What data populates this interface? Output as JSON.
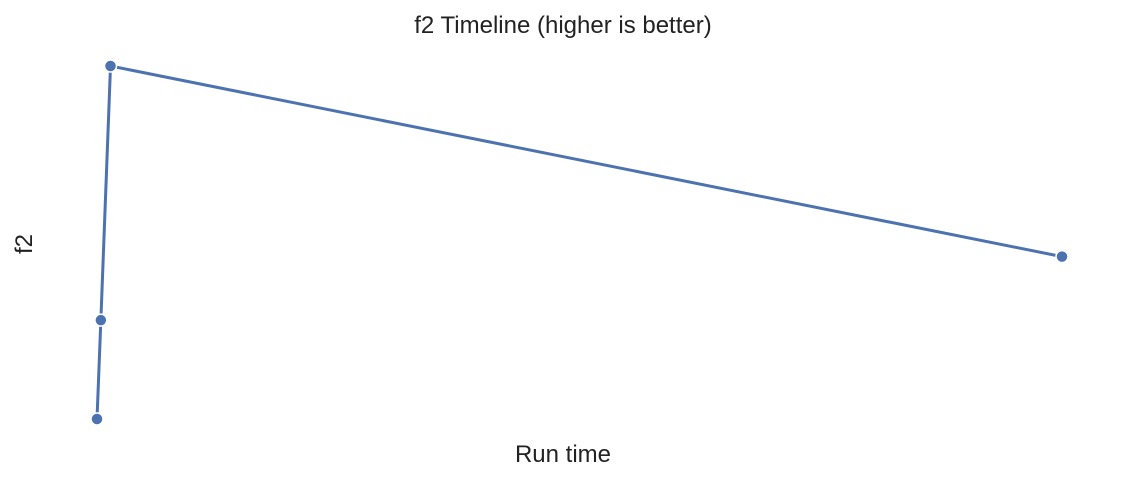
{
  "chart_data": {
    "type": "line",
    "title": "f2 Timeline (higher is better)",
    "xlabel": "Run time",
    "ylabel": "f2",
    "grid": false,
    "color": "#4c72b0",
    "series": [
      {
        "x": [
          0.0,
          0.004,
          0.014,
          1.0
        ],
        "y": [
          0.0,
          0.28,
          1.0,
          0.46
        ]
      }
    ]
  }
}
